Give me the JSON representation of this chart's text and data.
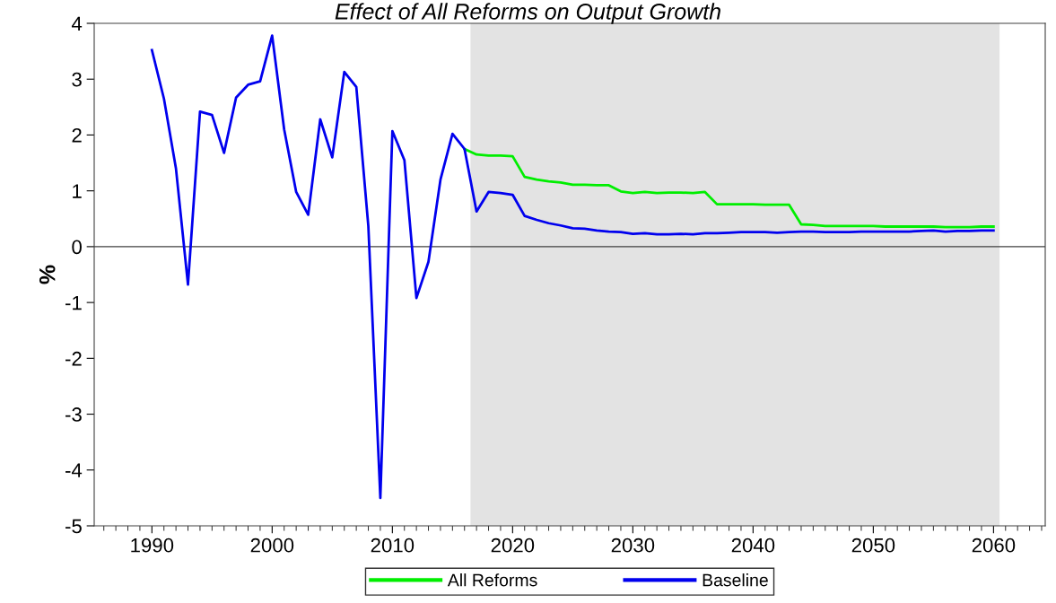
{
  "chart_data": {
    "type": "line",
    "title": "Effect of All Reforms on Output Growth",
    "ylabel": "%",
    "xlim": [
      1985.2,
      2064.3
    ],
    "xticks": [
      1990,
      2000,
      2010,
      2020,
      2030,
      2040,
      2050,
      2060
    ],
    "ylim": [
      -5,
      4
    ],
    "yticks": [
      -5,
      -4,
      -3,
      -2,
      -1,
      0,
      1,
      2,
      3,
      4
    ],
    "grid": false,
    "legend": "bottom",
    "line_style": "solid",
    "marker": "none",
    "ref_lines": [
      {
        "axis": "y",
        "value": 0,
        "color": "#404040"
      }
    ],
    "bands": [
      {
        "axis": "x",
        "from": 2016.5,
        "to": 2060.5,
        "color": "#e3e3e3"
      }
    ],
    "series": [
      {
        "name": "All Reforms",
        "color": "#00ee00",
        "x": [
          2016,
          2017,
          2018,
          2019,
          2020,
          2021,
          2022,
          2023,
          2024,
          2025,
          2026,
          2027,
          2028,
          2029,
          2030,
          2031,
          2032,
          2033,
          2034,
          2035,
          2036,
          2037,
          2038,
          2039,
          2040,
          2041,
          2042,
          2043,
          2044,
          2045,
          2046,
          2047,
          2048,
          2049,
          2050,
          2051,
          2052,
          2053,
          2054,
          2055,
          2056,
          2057,
          2058,
          2059,
          2060
        ],
        "values": [
          1.75,
          1.65,
          1.63,
          1.63,
          1.62,
          1.25,
          1.2,
          1.17,
          1.15,
          1.11,
          1.11,
          1.1,
          1.1,
          0.99,
          0.96,
          0.98,
          0.96,
          0.97,
          0.97,
          0.96,
          0.98,
          0.76,
          0.76,
          0.76,
          0.76,
          0.75,
          0.75,
          0.75,
          0.4,
          0.39,
          0.37,
          0.37,
          0.37,
          0.37,
          0.37,
          0.36,
          0.36,
          0.36,
          0.36,
          0.36,
          0.35,
          0.35,
          0.35,
          0.36,
          0.36
        ]
      },
      {
        "name": "Baseline",
        "color": "#0000ee",
        "x": [
          1990,
          1991,
          1992,
          1993,
          1994,
          1995,
          1996,
          1997,
          1998,
          1999,
          2000,
          2001,
          2002,
          2003,
          2004,
          2005,
          2006,
          2007,
          2008,
          2009,
          2010,
          2011,
          2012,
          2013,
          2014,
          2015,
          2016,
          2017,
          2018,
          2019,
          2020,
          2021,
          2022,
          2023,
          2024,
          2025,
          2026,
          2027,
          2028,
          2029,
          2030,
          2031,
          2032,
          2033,
          2034,
          2035,
          2036,
          2037,
          2038,
          2039,
          2040,
          2041,
          2042,
          2043,
          2044,
          2045,
          2046,
          2047,
          2048,
          2049,
          2050,
          2051,
          2052,
          2053,
          2054,
          2055,
          2056,
          2057,
          2058,
          2059,
          2060
        ],
        "values": [
          3.52,
          2.65,
          1.4,
          -0.68,
          2.42,
          2.36,
          1.68,
          2.67,
          2.9,
          2.96,
          3.78,
          2.1,
          0.98,
          0.57,
          2.28,
          1.6,
          3.13,
          2.86,
          0.37,
          -4.5,
          2.07,
          1.55,
          -0.92,
          -0.27,
          1.2,
          2.02,
          1.75,
          0.63,
          0.98,
          0.96,
          0.93,
          0.55,
          0.48,
          0.42,
          0.38,
          0.33,
          0.32,
          0.29,
          0.27,
          0.26,
          0.23,
          0.24,
          0.22,
          0.22,
          0.23,
          0.22,
          0.24,
          0.24,
          0.25,
          0.26,
          0.26,
          0.26,
          0.25,
          0.26,
          0.27,
          0.27,
          0.26,
          0.26,
          0.26,
          0.27,
          0.27,
          0.27,
          0.27,
          0.27,
          0.28,
          0.29,
          0.27,
          0.28,
          0.28,
          0.29,
          0.29
        ]
      }
    ]
  }
}
